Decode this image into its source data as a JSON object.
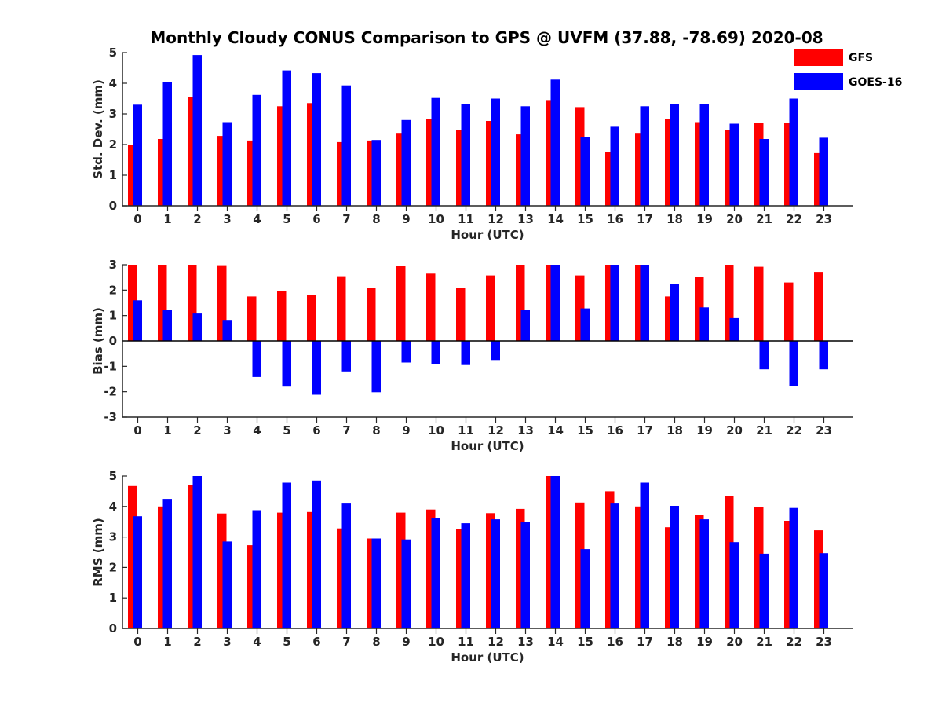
{
  "figure": {
    "title": "Monthly Cloudy CONUS Comparison to GPS @ UVFM (37.88, -78.69) 2020-08"
  },
  "legend": [
    {
      "label": "GFS",
      "color": "#ff0000"
    },
    {
      "label": "GOES-16",
      "color": "#0000ff"
    }
  ],
  "chart_data": [
    {
      "type": "bar",
      "xlabel": "Hour (UTC)",
      "ylabel": "Std. Dev. (mm)",
      "ylim": [
        0,
        5
      ],
      "yticks": [
        0,
        1,
        2,
        3,
        4,
        5
      ],
      "categories": [
        "0",
        "1",
        "2",
        "3",
        "4",
        "5",
        "6",
        "7",
        "8",
        "9",
        "10",
        "11",
        "12",
        "13",
        "14",
        "15",
        "16",
        "17",
        "18",
        "19",
        "20",
        "21",
        "22",
        "23"
      ],
      "series": [
        {
          "name": "GFS",
          "color": "#ff0000",
          "values": [
            2.0,
            2.18,
            3.55,
            2.28,
            2.13,
            3.25,
            3.35,
            2.08,
            2.13,
            2.38,
            2.82,
            2.48,
            2.77,
            2.33,
            3.45,
            3.22,
            1.77,
            2.38,
            2.83,
            2.73,
            2.47,
            2.7,
            2.7,
            1.72
          ]
        },
        {
          "name": "GOES-16",
          "color": "#0000ff",
          "values": [
            3.3,
            4.05,
            4.92,
            2.73,
            3.62,
            4.42,
            4.33,
            3.93,
            2.15,
            2.8,
            3.52,
            3.32,
            3.5,
            3.25,
            4.12,
            2.25,
            2.58,
            3.25,
            3.32,
            3.32,
            2.68,
            2.18,
            3.5,
            2.22
          ]
        }
      ]
    },
    {
      "type": "bar",
      "xlabel": "Hour (UTC)",
      "ylabel": "Bias (mm)",
      "ylim": [
        -3,
        3
      ],
      "yticks": [
        -3,
        -2,
        -1,
        0,
        1,
        2,
        3
      ],
      "categories": [
        "0",
        "1",
        "2",
        "3",
        "4",
        "5",
        "6",
        "7",
        "8",
        "9",
        "10",
        "11",
        "12",
        "13",
        "14",
        "15",
        "16",
        "17",
        "18",
        "19",
        "20",
        "21",
        "22",
        "23"
      ],
      "series": [
        {
          "name": "GFS",
          "color": "#ff0000",
          "values": [
            3.0,
            3.0,
            3.0,
            2.98,
            1.75,
            1.95,
            1.8,
            2.55,
            2.08,
            2.95,
            2.65,
            2.08,
            2.58,
            3.0,
            3.0,
            2.58,
            3.0,
            3.0,
            1.75,
            2.52,
            3.0,
            2.92,
            2.3,
            2.72
          ]
        },
        {
          "name": "GOES-16",
          "color": "#0000ff",
          "values": [
            1.6,
            1.22,
            1.08,
            0.83,
            -1.42,
            -1.8,
            -2.12,
            -1.2,
            -2.02,
            -0.85,
            -0.92,
            -0.95,
            -0.75,
            1.22,
            3.0,
            1.28,
            3.0,
            3.0,
            2.25,
            1.32,
            0.9,
            -1.12,
            -1.78,
            -1.12
          ]
        }
      ]
    },
    {
      "type": "bar",
      "xlabel": "Hour (UTC)",
      "ylabel": "RMS (mm)",
      "ylim": [
        0,
        5
      ],
      "yticks": [
        0,
        1,
        2,
        3,
        4,
        5
      ],
      "categories": [
        "0",
        "1",
        "2",
        "3",
        "4",
        "5",
        "6",
        "7",
        "8",
        "9",
        "10",
        "11",
        "12",
        "13",
        "14",
        "15",
        "16",
        "17",
        "18",
        "19",
        "20",
        "21",
        "22",
        "23"
      ],
      "series": [
        {
          "name": "GFS",
          "color": "#ff0000",
          "values": [
            4.67,
            4.0,
            4.7,
            3.77,
            2.73,
            3.8,
            3.82,
            3.28,
            2.95,
            3.8,
            3.9,
            3.25,
            3.78,
            3.92,
            5.0,
            4.13,
            4.5,
            4.0,
            3.32,
            3.72,
            4.33,
            3.98,
            3.53,
            3.22
          ]
        },
        {
          "name": "GOES-16",
          "color": "#0000ff",
          "values": [
            3.68,
            4.25,
            5.0,
            2.85,
            3.88,
            4.78,
            4.85,
            4.12,
            2.95,
            2.92,
            3.63,
            3.45,
            3.58,
            3.48,
            5.0,
            2.6,
            4.12,
            4.78,
            4.02,
            3.58,
            2.83,
            2.45,
            3.95,
            2.47
          ]
        }
      ]
    }
  ]
}
